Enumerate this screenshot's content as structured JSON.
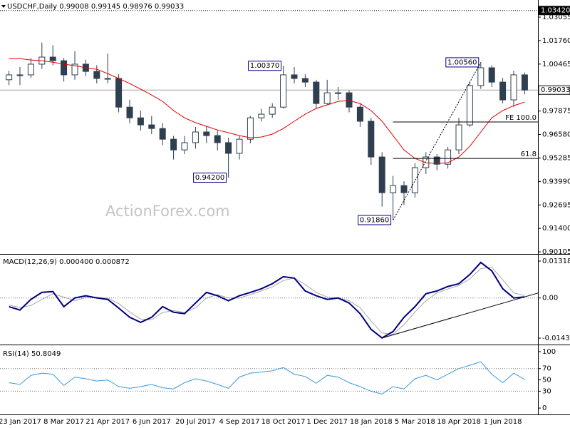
{
  "chart_data": [
    {
      "type": "candlestick",
      "title": "USDCHF,Daily  0.99008 0.99145 0.98976 0.99033",
      "color": "#2f3f4f",
      "categories": [
        null,
        "23 Jan 2017",
        null,
        null,
        null,
        "8 Mar 2017",
        null,
        null,
        null,
        "21 Apr 2017",
        null,
        null,
        null,
        "6 Jun 2017",
        null,
        null,
        null,
        "20 Jul 2017",
        null,
        null,
        null,
        "4 Sep 2017",
        null,
        null,
        null,
        "18 Oct 2017",
        null,
        null,
        null,
        "1 Dec 2017",
        null,
        null,
        null,
        "18 Jan 2018",
        null,
        null,
        null,
        "5 Mar 2018",
        null,
        null,
        null,
        "18 Apr 2018",
        null,
        null,
        null,
        "1 Jun 2018",
        null,
        null
      ],
      "open": [
        0.996,
        0.9987,
        0.9987,
        1.0046,
        1.0085,
        1.0065,
        0.9987,
        1.0046,
        1.0006,
        0.9967,
        0.9967,
        0.9809,
        0.975,
        0.9711,
        0.9691,
        0.9632,
        0.9573,
        0.9613,
        0.9672,
        0.9652,
        0.9613,
        0.9554,
        0.9632,
        0.975,
        0.977,
        0.9809,
        0.9987,
        0.9967,
        0.9947,
        0.9829,
        0.9888,
        0.9888,
        0.9809,
        0.9731,
        0.9534,
        0.9337,
        0.9376,
        0.9337,
        0.9475,
        0.9534,
        0.9494,
        0.9573,
        0.9711,
        0.9928,
        1.0026,
        0.9947,
        0.9849,
        0.9987
      ],
      "high": [
        1.001,
        1.003,
        1.008,
        1.0165,
        1.015,
        1.008,
        1.0117,
        1.007,
        1.004,
        1.0105,
        0.999,
        0.985,
        0.979,
        0.976,
        0.972,
        0.965,
        0.965,
        0.97,
        0.97,
        0.968,
        0.964,
        0.965,
        0.976,
        0.98,
        0.983,
        1.0037,
        1.003,
        0.999,
        0.996,
        0.996,
        0.992,
        0.99,
        0.983,
        0.975,
        0.956,
        0.943,
        0.94,
        0.95,
        0.956,
        0.955,
        0.959,
        0.975,
        0.995,
        1.0056,
        1.004,
        0.997,
        1.001,
        1.0
      ],
      "low": [
        0.993,
        0.993,
        0.997,
        1.002,
        1.004,
        0.995,
        0.996,
        0.998,
        0.994,
        0.994,
        0.978,
        0.972,
        0.968,
        0.966,
        0.96,
        0.952,
        0.955,
        0.958,
        0.961,
        0.957,
        0.942,
        0.952,
        0.961,
        0.973,
        0.975,
        0.98,
        0.994,
        0.992,
        0.98,
        0.982,
        0.985,
        0.978,
        0.97,
        0.949,
        0.926,
        0.9186,
        0.927,
        0.931,
        0.944,
        0.946,
        0.947,
        0.955,
        0.97,
        0.991,
        0.992,
        0.983,
        0.981,
        0.988
      ],
      "close": [
        0.9987,
        0.9987,
        1.0046,
        1.0085,
        1.0065,
        0.9987,
        1.0046,
        1.0006,
        0.9967,
        0.9967,
        0.9809,
        0.975,
        0.9711,
        0.9691,
        0.9632,
        0.9573,
        0.9613,
        0.9672,
        0.9652,
        0.9613,
        0.9554,
        0.9632,
        0.975,
        0.977,
        0.9809,
        0.9987,
        0.9967,
        0.9947,
        0.9829,
        0.9888,
        0.9888,
        0.9809,
        0.9731,
        0.9534,
        0.9337,
        0.9376,
        0.9337,
        0.9475,
        0.9534,
        0.9494,
        0.9573,
        0.9711,
        0.9928,
        1.0026,
        0.9947,
        0.9849,
        0.9987,
        0.99033
      ],
      "ma": {
        "color": "#e00000",
        "values": [
          1.0077,
          1.0077,
          1.0069,
          1.0065,
          1.0057,
          1.0046,
          1.0038,
          1.0026,
          1.0018,
          0.9994,
          0.9967,
          0.9939,
          0.9908,
          0.9876,
          0.9841,
          0.979,
          0.975,
          0.9723,
          0.9703,
          0.9683,
          0.9668,
          0.9652,
          0.964,
          0.9644,
          0.966,
          0.9691,
          0.9731,
          0.977,
          0.9802,
          0.9821,
          0.9841,
          0.9845,
          0.9829,
          0.979,
          0.9731,
          0.9652,
          0.9573,
          0.9526,
          0.9502,
          0.9498,
          0.9502,
          0.9534,
          0.9593,
          0.9672,
          0.975,
          0.979,
          0.9817,
          0.9837
        ]
      },
      "annotations": [
        {
          "value": 1.0037,
          "label": "1.00370"
        },
        {
          "value": 0.942,
          "label": "0.94200"
        },
        {
          "value": 0.9186,
          "label": "0.91860"
        },
        {
          "value": 1.0056,
          "label": "1.00560"
        }
      ],
      "levels": [
        {
          "value": 0.9727,
          "label": "FE 100.0"
        },
        {
          "value": 0.9526,
          "label": "61.8"
        }
      ],
      "price_markers": [
        {
          "value": 1.0342,
          "label": "1.03420",
          "line": "dotted",
          "fill": "#000000"
        },
        {
          "value": 0.99033,
          "line": "solid",
          "fill": "#ffffff"
        }
      ],
      "watermark": "ActionForex.com",
      "ylim": [
        0.9003,
        1.04
      ],
      "yticks": [
        1.03055,
        {
          "value": 1.0176,
          "label": "1.01760"
        },
        1.00465,
        0.97875,
        {
          "value": 0.9658,
          "label": "0.96580"
        },
        0.95285,
        {
          "value": 0.9399,
          "label": "0.93990"
        },
        0.92695,
        {
          "value": 0.914,
          "label": "0.91400"
        },
        0.90105
      ]
    },
    {
      "type": "line",
      "title": "MACD(12,26,9) 0.000400 0.000872",
      "series": [
        {
          "color": "#000080",
          "values": [
            -0.0031,
            -0.0043,
            -0.0005,
            0.002,
            0.0023,
            -0.0031,
            0,
            0.0008,
            0,
            -0.0005,
            -0.0036,
            -0.0069,
            -0.0087,
            -0.0069,
            -0.0031,
            -0.0051,
            -0.0056,
            -0.0018,
            0.002,
            0.0008,
            -0.001,
            0.0008,
            0.002,
            0.0033,
            0.0051,
            0.0076,
            0.0071,
            0.0025,
            0.0008,
            -0.0005,
            0,
            -0.0018,
            -0.0056,
            -0.0112,
            -0.0143,
            -0.012,
            -0.0069,
            -0.0031,
            0.0015,
            0.0025,
            0.0041,
            0.0051,
            0.0084,
            0.0127,
            0.0097,
            0.0033,
            0,
            0.0004
          ]
        },
        {
          "color": "#a8a8a8",
          "values": [
            -0.0025,
            -0.0034,
            -0.0027,
            -0.0005,
            0.0015,
            0.0003,
            -0.001,
            0.0002,
            0.0003,
            -0.0001,
            -0.002,
            -0.005,
            -0.0075,
            -0.0078,
            -0.0052,
            -0.0045,
            -0.0052,
            -0.0035,
            0,
            0.0012,
            0,
            0,
            0.0012,
            0.0025,
            0.004,
            0.0062,
            0.0072,
            0.0048,
            0.002,
            0.0003,
            0,
            -0.001,
            -0.0035,
            -0.0082,
            -0.0125,
            -0.013,
            -0.0095,
            -0.005,
            -0.001,
            0.0018,
            0.0032,
            0.0045,
            0.0068,
            0.0105,
            0.011,
            0.0065,
            0.0018,
            0.0009
          ]
        }
      ],
      "dotted": [
        0
      ],
      "trendline": true,
      "ylim": [
        -0.01638,
        0.01522
      ],
      "yticks": [
        0.013184,
        {
          "value": 0,
          "label": "0.00"
        },
        -0.014339
      ]
    },
    {
      "type": "line",
      "title": "RSI(14) 50.8049",
      "series": [
        {
          "color": "#3a9ad9",
          "values": [
            45,
            42,
            58,
            62,
            60,
            40,
            55,
            52,
            48,
            50,
            38,
            35,
            38,
            42,
            36,
            34,
            45,
            52,
            48,
            42,
            35,
            55,
            62,
            64,
            66,
            72,
            60,
            56,
            44,
            58,
            55,
            45,
            38,
            30,
            25,
            38,
            34,
            52,
            58,
            50,
            60,
            70,
            76,
            82,
            60,
            45,
            62,
            50.8049
          ]
        }
      ],
      "dotted": [
        70,
        30
      ],
      "ylim": [
        -10,
        107.6
      ],
      "yticks": [
        100,
        70,
        50,
        30,
        0
      ]
    }
  ]
}
